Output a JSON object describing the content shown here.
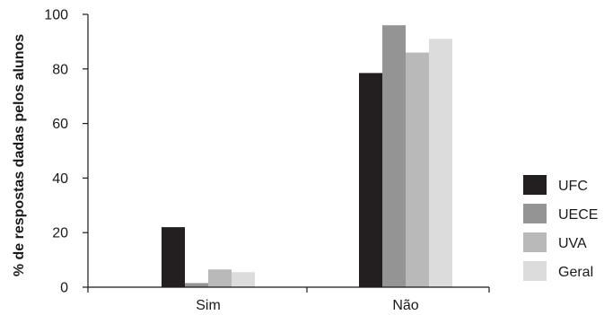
{
  "chart_data": {
    "type": "bar",
    "title": "",
    "xlabel": "",
    "ylabel": "% de respostas dadas pelos alunos",
    "ylim": [
      0,
      100
    ],
    "yticks": [
      "0",
      "20",
      "40",
      "60",
      "80",
      "100"
    ],
    "grid": false,
    "legend_position": "right",
    "categories": [
      "Sim",
      "Não"
    ],
    "series": [
      {
        "name": "UFC",
        "color": "#231f20",
        "values": [
          22,
          78.5
        ]
      },
      {
        "name": "UECE",
        "color": "#949494",
        "values": [
          1.5,
          96
        ]
      },
      {
        "name": "UVA",
        "color": "#b9b9b9",
        "values": [
          6.5,
          86
        ]
      },
      {
        "name": "Geral",
        "color": "#dcdcdc",
        "values": [
          5.5,
          91
        ]
      }
    ]
  }
}
